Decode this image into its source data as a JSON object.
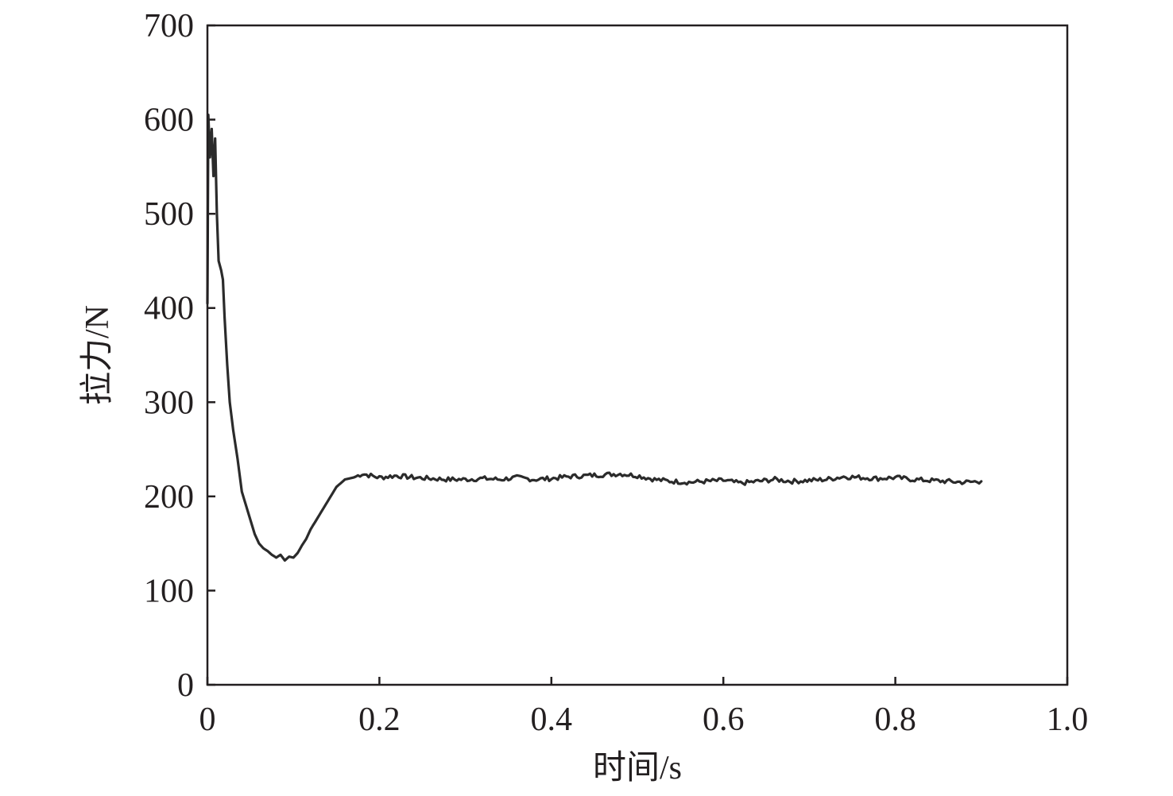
{
  "chart_data": {
    "type": "line",
    "title": "",
    "xlabel": "时间/s",
    "ylabel": "拉力/N",
    "xlim": [
      0,
      1.0
    ],
    "ylim": [
      0,
      700
    ],
    "xticks": [
      0,
      0.2,
      0.4,
      0.6,
      0.8,
      1.0
    ],
    "xtick_labels": [
      "0",
      "0.2",
      "0.4",
      "0.6",
      "0.8",
      "1.0"
    ],
    "yticks": [
      0,
      100,
      200,
      300,
      400,
      500,
      600,
      700
    ],
    "ytick_labels": [
      "0",
      "100",
      "200",
      "300",
      "400",
      "500",
      "600",
      "700"
    ],
    "grid": false,
    "legend": "none",
    "series": [
      {
        "color": "#2b2b2b",
        "x": [
          0,
          0.001,
          0.003,
          0.005,
          0.007,
          0.009,
          0.011,
          0.013,
          0.016,
          0.018,
          0.02,
          0.023,
          0.026,
          0.03,
          0.035,
          0.04,
          0.045,
          0.05,
          0.055,
          0.06,
          0.065,
          0.07,
          0.075,
          0.08,
          0.085,
          0.09,
          0.095,
          0.1,
          0.105,
          0.11,
          0.115,
          0.12,
          0.13,
          0.14,
          0.15,
          0.16,
          0.17,
          0.18,
          0.19,
          0.2,
          0.22,
          0.24,
          0.26,
          0.28,
          0.3,
          0.32,
          0.34,
          0.36,
          0.38,
          0.4,
          0.42,
          0.44,
          0.46,
          0.48,
          0.5,
          0.52,
          0.54,
          0.56,
          0.58,
          0.6,
          0.62,
          0.64,
          0.66,
          0.68,
          0.7,
          0.72,
          0.74,
          0.76,
          0.78,
          0.8,
          0.82,
          0.84,
          0.86,
          0.88,
          0.9
        ],
        "y": [
          405,
          605,
          560,
          590,
          540,
          580,
          500,
          450,
          440,
          430,
          390,
          340,
          300,
          270,
          240,
          205,
          190,
          175,
          160,
          150,
          145,
          142,
          138,
          135,
          138,
          132,
          136,
          135,
          140,
          148,
          155,
          165,
          180,
          195,
          210,
          218,
          220,
          224,
          222,
          220,
          222,
          220,
          219,
          218,
          218,
          219,
          218,
          220,
          218,
          219,
          221,
          222,
          223,
          224,
          222,
          218,
          216,
          215,
          216,
          217,
          214,
          216,
          218,
          216,
          217,
          218,
          221,
          220,
          219,
          220,
          218,
          217,
          216,
          215,
          216
        ]
      }
    ]
  }
}
